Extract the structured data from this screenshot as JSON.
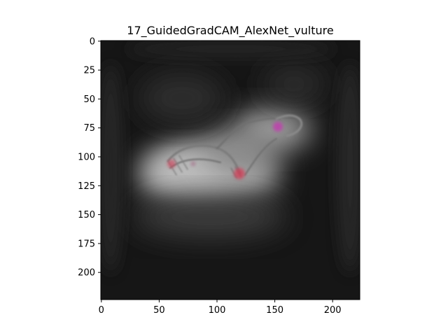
{
  "chart_data": {
    "type": "heatmap",
    "title": "17_GuidedGradCAM_AlexNet_vulture",
    "xlabel": "",
    "ylabel": "",
    "xlim": [
      0,
      224
    ],
    "ylim": [
      224,
      0
    ],
    "x_ticks": [
      0,
      50,
      100,
      150,
      200
    ],
    "y_ticks": [
      0,
      25,
      50,
      75,
      100,
      125,
      150,
      175,
      200
    ],
    "image_size": [
      224,
      224
    ],
    "grid": false,
    "colors": {
      "background_dark": "#141414",
      "glow": "#c8c8c8",
      "highlight_red": "#d43a55",
      "highlight_magenta": "#c23ab0"
    },
    "highlight_regions": [
      {
        "shape": "bird-wing-left",
        "center": [
          80,
          108
        ]
      },
      {
        "shape": "bird-body",
        "center": [
          120,
          115
        ]
      },
      {
        "shape": "bird-head",
        "center": [
          155,
          75
        ]
      }
    ]
  }
}
